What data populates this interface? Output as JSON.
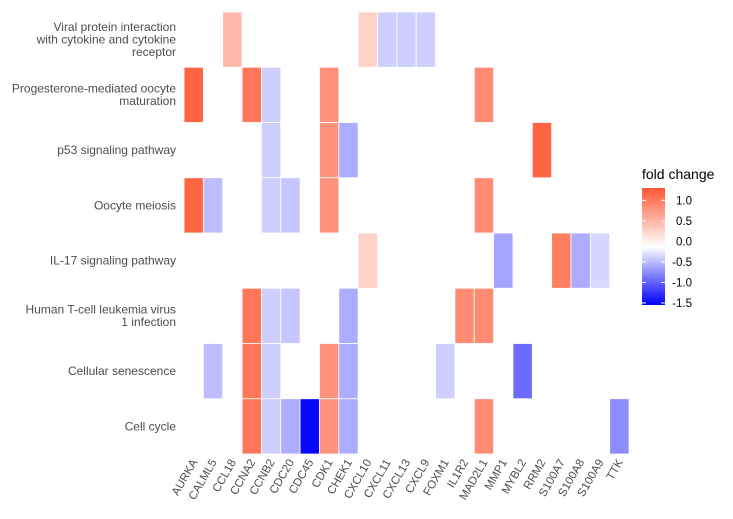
{
  "chart_data": {
    "type": "heatmap",
    "x": [
      "AURKA",
      "CALML5",
      "CCL18",
      "CCNA2",
      "CCNB2",
      "CDC20",
      "CDC45",
      "CDK1",
      "CHEK1",
      "CXCL10",
      "CXCL11",
      "CXCL13",
      "CXCL9",
      "FOXM1",
      "IL1R2",
      "MAD2L1",
      "MMP1",
      "MYBL2",
      "RRM2",
      "S100A7",
      "S100A8",
      "S100A9",
      "TTK"
    ],
    "y": [
      [
        "Viral protein interaction",
        "with cytokine and cytokine",
        "receptor"
      ],
      [
        "Progesterone-mediated oocyte",
        "maturation"
      ],
      [
        "p53 signaling pathway"
      ],
      [
        "Oocyte meiosis"
      ],
      [
        "IL-17 signaling pathway"
      ],
      [
        "Human T-cell leukemia virus",
        "1 infection"
      ],
      [
        "Cellular senescence"
      ],
      [
        "Cell cycle"
      ]
    ],
    "cells": [
      [
        0,
        "CCL18",
        0.55
      ],
      [
        0,
        "CXCL10",
        0.35
      ],
      [
        0,
        "CXCL11",
        -0.3
      ],
      [
        0,
        "CXCL13",
        -0.3
      ],
      [
        0,
        "CXCL9",
        -0.3
      ],
      [
        1,
        "AURKA",
        1.2
      ],
      [
        1,
        "CCNA2",
        1.05
      ],
      [
        1,
        "CCNB2",
        -0.3
      ],
      [
        1,
        "CDK1",
        0.85
      ],
      [
        1,
        "MAD2L1",
        0.9
      ],
      [
        2,
        "CCNB2",
        -0.3
      ],
      [
        2,
        "CDK1",
        0.85
      ],
      [
        2,
        "CHEK1",
        -0.5
      ],
      [
        2,
        "RRM2",
        1.2
      ],
      [
        3,
        "AURKA",
        1.2
      ],
      [
        3,
        "CALML5",
        -0.4
      ],
      [
        3,
        "CCNB2",
        -0.3
      ],
      [
        3,
        "CDC20",
        -0.35
      ],
      [
        3,
        "CDK1",
        0.85
      ],
      [
        3,
        "MAD2L1",
        0.9
      ],
      [
        4,
        "CXCL10",
        0.35
      ],
      [
        4,
        "MMP1",
        -0.55
      ],
      [
        4,
        "S100A7",
        1.0
      ],
      [
        4,
        "S100A8",
        -0.5
      ],
      [
        4,
        "S100A9",
        -0.25
      ],
      [
        5,
        "CCNA2",
        1.05
      ],
      [
        5,
        "CCNB2",
        -0.3
      ],
      [
        5,
        "CDC20",
        -0.35
      ],
      [
        5,
        "CHEK1",
        -0.5
      ],
      [
        5,
        "IL1R2",
        0.9
      ],
      [
        5,
        "MAD2L1",
        0.9
      ],
      [
        6,
        "CALML5",
        -0.4
      ],
      [
        6,
        "CCNA2",
        1.05
      ],
      [
        6,
        "CCNB2",
        -0.3
      ],
      [
        6,
        "CDK1",
        0.85
      ],
      [
        6,
        "CHEK1",
        -0.5
      ],
      [
        6,
        "FOXM1",
        -0.3
      ],
      [
        6,
        "MYBL2",
        -0.9
      ],
      [
        7,
        "CCNA2",
        1.05
      ],
      [
        7,
        "CCNB2",
        -0.3
      ],
      [
        7,
        "CDC20",
        -0.5
      ],
      [
        7,
        "CDC45",
        -1.5
      ],
      [
        7,
        "CDK1",
        0.85
      ],
      [
        7,
        "CHEK1",
        -0.5
      ],
      [
        7,
        "MAD2L1",
        0.9
      ],
      [
        7,
        "TTK",
        -0.7
      ]
    ],
    "legend": {
      "title": "fold change",
      "placement": "right",
      "ticks": [
        "1.0",
        "0.5",
        "0.0",
        "-0.5",
        "-1.0",
        "-1.5"
      ],
      "tick_values": [
        1.0,
        0.5,
        0.0,
        -0.5,
        -1.0,
        -1.5
      ],
      "range": [
        -1.55,
        1.3
      ]
    },
    "colors": {
      "low": "#0000ff",
      "mid": "#ffffff",
      "high": "#ff5733"
    }
  }
}
